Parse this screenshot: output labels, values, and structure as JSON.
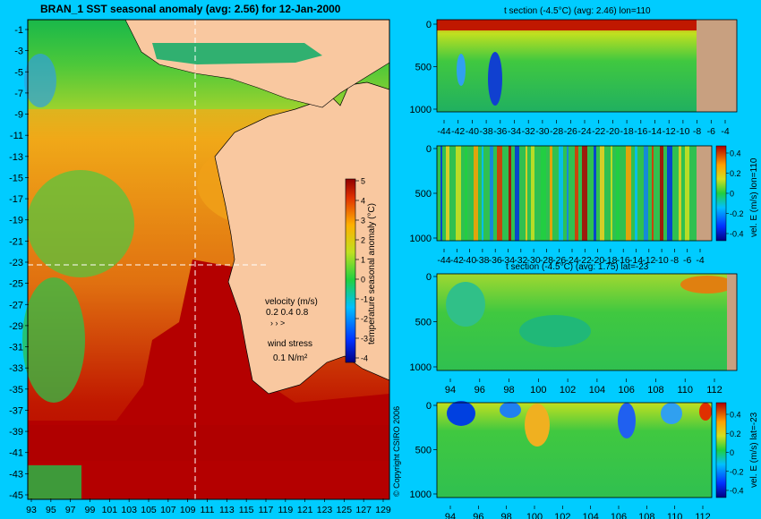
{
  "main_map": {
    "title": "BRAN_1 SST seasonal anomaly (avg: 2.56) for 12-Jan-2000",
    "x_ticks": [
      "93",
      "95",
      "97",
      "99",
      "101",
      "103",
      "105",
      "107",
      "109",
      "111",
      "113",
      "115",
      "117",
      "119",
      "121",
      "123",
      "125",
      "127",
      "129"
    ],
    "y_ticks": [
      "-1",
      "-3",
      "-5",
      "-7",
      "-9",
      "-11",
      "-13",
      "-15",
      "-17",
      "-19",
      "-21",
      "-23",
      "-25",
      "-27",
      "-29",
      "-31",
      "-33",
      "-35",
      "-37",
      "-39",
      "-41",
      "-43",
      "-45"
    ],
    "colorbar_label": "temperature seasonal anomaly (°C)",
    "colorbar_ticks": [
      "5",
      "4",
      "3",
      "2",
      "1",
      "0",
      "-1",
      "-2",
      "-3",
      "-4"
    ],
    "velocity_legend": {
      "title": "velocity (m/s)",
      "values": "0.2 0.4 0.8"
    },
    "wind_legend": {
      "title": "wind stress",
      "value": "0.1 N/m²"
    },
    "copyright": "© Copyright CSIRO 2006",
    "colors": {
      "land": "#f9c8a0",
      "anomaly_high": "#b40000",
      "anomaly_mid": "#ffb000",
      "anomaly_low": "#20c040"
    }
  },
  "panel1": {
    "title": "t section (-4.5°C) (avg: 2.46) lon=110",
    "y_ticks": [
      "0",
      "500",
      "1000"
    ],
    "x_ticks": [
      "-44",
      "-42",
      "-40",
      "-38",
      "-36",
      "-34",
      "-32",
      "-30",
      "-28",
      "-26",
      "-24",
      "-22",
      "-20",
      "-18",
      "-16",
      "-14",
      "-12",
      "-10",
      "-8",
      "-6",
      "-4"
    ]
  },
  "panel2": {
    "y_ticks": [
      "0",
      "500",
      "1000"
    ],
    "x_ticks": [
      "-44",
      "-42",
      "-40",
      "-38",
      "-36",
      "-34",
      "-32",
      "-30",
      "-28",
      "-26",
      "-24",
      "-22",
      "-20",
      "-18",
      "-16",
      "-14",
      "-12",
      "-10",
      "-8",
      "-6",
      "-4"
    ],
    "colorbar_label": "vel. E (m/s) lon=110",
    "colorbar_ticks": [
      "0.4",
      "0.2",
      "0",
      "-0.2",
      "-0.4"
    ]
  },
  "panel3": {
    "title": "t section (-4.5°C) (avg: 1.75) lat=-23",
    "y_ticks": [
      "0",
      "500",
      "1000"
    ],
    "x_ticks": [
      "94",
      "96",
      "98",
      "100",
      "102",
      "104",
      "106",
      "108",
      "110",
      "112"
    ]
  },
  "panel4": {
    "y_ticks": [
      "0",
      "500",
      "1000"
    ],
    "x_ticks": [
      "94",
      "96",
      "98",
      "100",
      "102",
      "104",
      "106",
      "108",
      "110",
      "112"
    ],
    "colorbar_label": "vel. E (m/s) lat=-23",
    "colorbar_ticks": [
      "0.4",
      "0.2",
      "0",
      "-0.2",
      "-0.4"
    ]
  },
  "chart_data": [
    {
      "type": "heatmap",
      "title": "BRAN_1 SST seasonal anomaly (avg: 2.56) for 12-Jan-2000",
      "xlabel": "",
      "ylabel": "",
      "xlim": [
        93,
        130
      ],
      "ylim": [
        -45,
        0
      ],
      "colorbar_range": [
        -4,
        5
      ],
      "colorbar_label": "temperature seasonal anomaly (°C)"
    },
    {
      "type": "heatmap",
      "title": "t section (-4.5°C) (avg: 2.46) lon=110",
      "xlim": [
        -45,
        -3
      ],
      "ylim": [
        1050,
        0
      ]
    },
    {
      "type": "heatmap",
      "title": "",
      "xlim": [
        -45,
        -3
      ],
      "ylim": [
        1050,
        0
      ],
      "colorbar_range": [
        -0.45,
        0.45
      ],
      "colorbar_label": "vel. E (m/s) lon=110"
    },
    {
      "type": "heatmap",
      "title": "t section (-4.5°C) (avg: 1.75) lat=-23",
      "xlim": [
        93,
        114
      ],
      "ylim": [
        1050,
        0
      ]
    },
    {
      "type": "heatmap",
      "title": "",
      "xlim": [
        93,
        114
      ],
      "ylim": [
        1050,
        0
      ],
      "colorbar_range": [
        -0.45,
        0.45
      ],
      "colorbar_label": "vel. E (m/s) lat=-23"
    }
  ]
}
